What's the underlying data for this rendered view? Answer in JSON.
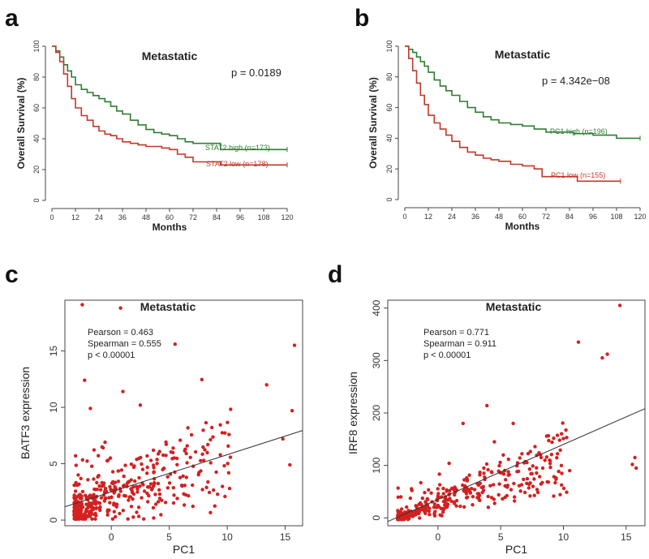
{
  "colors": {
    "high": "#2e7d32",
    "low": "#c0392b",
    "point": "#d42020",
    "fit": "#333333",
    "axis": "#444444"
  },
  "chart_data": [
    {
      "id": "a",
      "panel_label": "a",
      "type": "line",
      "title": "Metastatic",
      "xlabel": "Months",
      "ylabel": "Overall Survival  (%)",
      "xlim": [
        0,
        120
      ],
      "ylim": [
        0,
        100
      ],
      "xticks": [
        0,
        12,
        24,
        36,
        48,
        60,
        72,
        84,
        96,
        108,
        120
      ],
      "yticks": [
        0,
        20,
        40,
        60,
        80,
        100
      ],
      "pvalue": "p = 0.0189",
      "series": [
        {
          "name": "STAT2 high (n=173)",
          "color": "#2e7d32",
          "x": [
            0,
            2,
            4,
            6,
            8,
            10,
            12,
            15,
            18,
            21,
            24,
            27,
            30,
            33,
            36,
            40,
            44,
            48,
            52,
            56,
            60,
            64,
            68,
            72,
            80,
            86,
            100,
            120
          ],
          "y": [
            100,
            97,
            93,
            88,
            84,
            80,
            75,
            72,
            70,
            68,
            66,
            64,
            61,
            58,
            56,
            52,
            49,
            46,
            44,
            43,
            42,
            40,
            38,
            37,
            37,
            33,
            33,
            33
          ]
        },
        {
          "name": "STAT2 low (n=178)",
          "color": "#c0392b",
          "x": [
            0,
            2,
            4,
            6,
            8,
            10,
            12,
            15,
            18,
            21,
            24,
            27,
            30,
            33,
            36,
            40,
            44,
            48,
            52,
            56,
            60,
            64,
            68,
            72,
            80,
            86,
            100,
            120
          ],
          "y": [
            100,
            96,
            90,
            82,
            74,
            66,
            60,
            55,
            52,
            48,
            45,
            43,
            42,
            40,
            38,
            37,
            36,
            35,
            35,
            34,
            33,
            30,
            28,
            25,
            25,
            23,
            23,
            23
          ]
        }
      ]
    },
    {
      "id": "b",
      "panel_label": "b",
      "type": "line",
      "title": "Metastatic",
      "xlabel": "Months",
      "ylabel": "Overall Survival  (%)",
      "xlim": [
        0,
        120
      ],
      "ylim": [
        0,
        100
      ],
      "xticks": [
        0,
        12,
        24,
        36,
        48,
        60,
        72,
        84,
        96,
        108,
        120
      ],
      "yticks": [
        0,
        20,
        40,
        60,
        80,
        100
      ],
      "pvalue": "p = 4.342e−08",
      "series": [
        {
          "name": "PC1 high (n=196)",
          "color": "#2e7d32",
          "x": [
            0,
            2,
            4,
            6,
            8,
            10,
            12,
            15,
            18,
            21,
            24,
            28,
            32,
            36,
            40,
            44,
            48,
            54,
            60,
            66,
            72,
            80,
            86,
            96,
            108,
            120
          ],
          "y": [
            100,
            98,
            96,
            93,
            90,
            87,
            83,
            78,
            74,
            71,
            68,
            64,
            60,
            57,
            54,
            52,
            50,
            49,
            48,
            46,
            44,
            44,
            43,
            42,
            40,
            40
          ]
        },
        {
          "name": "PC1 low (n=155)",
          "color": "#c0392b",
          "x": [
            0,
            2,
            4,
            6,
            8,
            10,
            12,
            15,
            18,
            21,
            24,
            28,
            32,
            36,
            40,
            44,
            48,
            54,
            60,
            66,
            70,
            76,
            84,
            88,
            100,
            110
          ],
          "y": [
            100,
            92,
            84,
            76,
            68,
            62,
            55,
            50,
            46,
            42,
            38,
            34,
            31,
            29,
            27,
            26,
            25,
            23,
            22,
            20,
            15,
            15,
            15,
            12,
            12,
            12
          ]
        }
      ]
    },
    {
      "id": "c",
      "panel_label": "c",
      "type": "scatter",
      "title": "Metastatic",
      "xlabel": "PC1",
      "ylabel": "BATF3 expression",
      "xlim": [
        -4,
        16.5
      ],
      "ylim": [
        -0.5,
        19.5
      ],
      "xticks": [
        0,
        5,
        10,
        15
      ],
      "yticks": [
        0,
        5,
        10,
        15
      ],
      "stats": [
        "Pearson = 0.463",
        "Spearman = 0.555",
        "p < 0.00001"
      ],
      "fit": {
        "intercept": 2.5,
        "slope": 0.33
      },
      "n_points": 420,
      "seed": 7,
      "outliers": [
        [
          -2.5,
          19.1
        ],
        [
          0.8,
          18.8
        ],
        [
          5.5,
          15.6
        ],
        [
          15.8,
          15.5
        ],
        [
          -2.3,
          12.4
        ],
        [
          13.4,
          12.0
        ],
        [
          15.6,
          9.7
        ],
        [
          -1.8,
          9.9
        ],
        [
          1.0,
          11.4
        ],
        [
          2.5,
          10.2
        ],
        [
          15.4,
          4.9
        ],
        [
          14.8,
          7.2
        ],
        [
          10.2,
          2.8
        ]
      ]
    },
    {
      "id": "d",
      "panel_label": "d",
      "type": "scatter",
      "title": "Metastatic",
      "xlabel": "PC1",
      "ylabel": "IRF8 expression",
      "xlim": [
        -4,
        16.5
      ],
      "ylim": [
        -15,
        415
      ],
      "xticks": [
        0,
        5,
        10,
        15
      ],
      "yticks": [
        0,
        100,
        200,
        300,
        400
      ],
      "stats": [
        "Pearson = 0.771",
        "Spearman = 0.911",
        "p < 0.00001"
      ],
      "fit": {
        "intercept": 35,
        "slope": 10.5
      },
      "n_points": 420,
      "seed": 11,
      "outliers": [
        [
          14.5,
          405
        ],
        [
          11.2,
          335
        ],
        [
          13.5,
          312
        ],
        [
          13.1,
          305
        ],
        [
          3.9,
          214
        ],
        [
          15.7,
          115
        ],
        [
          15.5,
          102
        ],
        [
          15.8,
          95
        ],
        [
          4.5,
          145
        ],
        [
          2.0,
          180
        ],
        [
          6.0,
          180
        ],
        [
          9.7,
          148
        ],
        [
          10.5,
          90
        ],
        [
          8.9,
          110
        ]
      ]
    }
  ]
}
